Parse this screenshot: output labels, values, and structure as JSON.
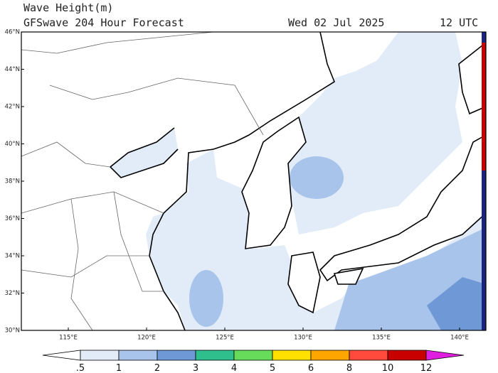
{
  "header": {
    "title": "Wave Height(m)",
    "subtitle": "GFSwave 204 Hour Forecast",
    "date": "Wed 02 Jul 2025",
    "time": "12 UTC"
  },
  "map": {
    "lat_ticks": [
      "46°N",
      "44°N",
      "42°N",
      "40°N",
      "38°N",
      "36°N",
      "34°N",
      "32°N",
      "30°N"
    ],
    "lon_ticks": [
      "115°E",
      "120°E",
      "125°E",
      "130°E",
      "135°E",
      "140°E"
    ]
  },
  "colorbar": {
    "labels": [
      ".5",
      "1",
      "2",
      "3",
      "4",
      "5",
      "6",
      "8",
      "10",
      "12"
    ],
    "colors": [
      "#ffffff",
      "#e1ecf8",
      "#a9c4ea",
      "#6f98d6",
      "#2fbf8c",
      "#66dc5a",
      "#ffe100",
      "#ffa500",
      "#ff4b3c",
      "#c80000",
      "#e01ee0"
    ]
  }
}
